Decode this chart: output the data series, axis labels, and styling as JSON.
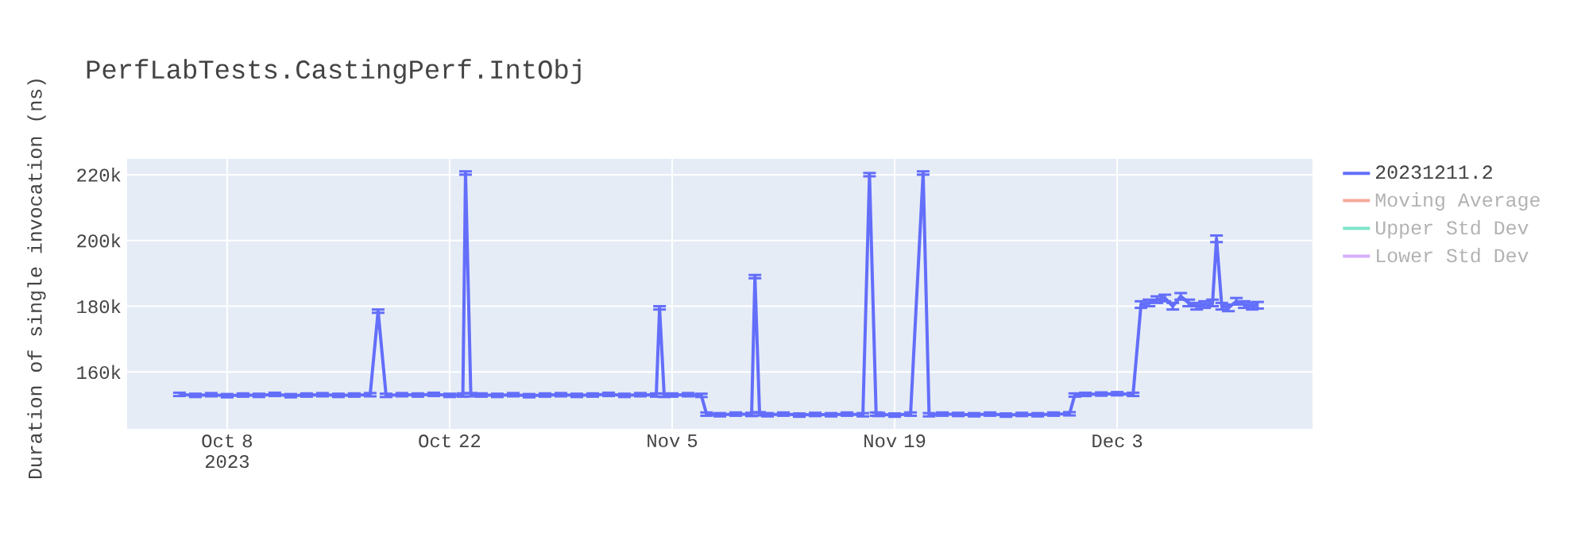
{
  "chart_data": {
    "type": "line",
    "title": "PerfLabTests.CastingPerf.IntObj",
    "ylabel": "Duration of single invocation (ns)",
    "x": [
      "2023-10-05",
      "2023-10-06",
      "2023-10-07",
      "2023-10-08",
      "2023-10-09",
      "2023-10-10",
      "2023-10-11",
      "2023-10-12",
      "2023-10-13",
      "2023-10-14",
      "2023-10-15",
      "2023-10-16",
      "2023-10-17",
      "2023-10-17T12:00",
      "2023-10-18",
      "2023-10-19",
      "2023-10-20",
      "2023-10-21",
      "2023-10-22",
      "2023-10-22T20:00",
      "2023-10-23",
      "2023-10-23T08:00",
      "2023-10-24",
      "2023-10-25",
      "2023-10-26",
      "2023-10-27",
      "2023-10-28",
      "2023-10-29",
      "2023-10-30",
      "2023-10-31",
      "2023-11-01",
      "2023-11-02",
      "2023-11-03",
      "2023-11-04",
      "2023-11-04T05:00",
      "2023-11-04T12:00",
      "2023-11-05",
      "2023-11-06",
      "2023-11-06T20:00",
      "2023-11-07T04:00",
      "2023-11-08",
      "2023-11-09",
      "2023-11-10",
      "2023-11-10T05:00",
      "2023-11-10T12:00",
      "2023-11-11",
      "2023-11-12",
      "2023-11-13",
      "2023-11-14",
      "2023-11-15",
      "2023-11-16",
      "2023-11-17",
      "2023-11-17T10:00",
      "2023-11-17T20:00",
      "2023-11-18",
      "2023-11-19",
      "2023-11-20",
      "2023-11-20T19:00",
      "2023-11-21T04:00",
      "2023-11-22",
      "2023-11-23",
      "2023-11-24",
      "2023-11-25",
      "2023-11-26",
      "2023-11-27",
      "2023-11-28",
      "2023-11-29",
      "2023-11-30",
      "2023-11-30T08:00",
      "2023-12-01",
      "2023-12-02",
      "2023-12-03",
      "2023-12-04",
      "2023-12-04T12:00",
      "2023-12-05",
      "2023-12-05T12:00",
      "2023-12-06",
      "2023-12-06T12:00",
      "2023-12-07",
      "2023-12-07T12:00",
      "2023-12-08",
      "2023-12-08T12:00",
      "2023-12-09",
      "2023-12-09T06:00",
      "2023-12-09T14:00",
      "2023-12-10",
      "2023-12-10T12:00",
      "2023-12-11",
      "2023-12-11T12:00",
      "2023-12-11T20:00"
    ],
    "series": [
      {
        "name": "20231211.2",
        "color": "#636efa",
        "values": [
          153200,
          152900,
          153100,
          152800,
          153000,
          152900,
          153200,
          152800,
          153000,
          153100,
          152900,
          153000,
          153100,
          178500,
          152900,
          153100,
          153000,
          153200,
          152900,
          153000,
          220500,
          153100,
          153000,
          152900,
          153100,
          152800,
          153000,
          153100,
          152900,
          153000,
          153200,
          152900,
          153100,
          153000,
          179500,
          152900,
          153000,
          153100,
          152900,
          147200,
          147000,
          147200,
          147100,
          189000,
          147300,
          147000,
          147200,
          146900,
          147100,
          147000,
          147200,
          147000,
          220000,
          147200,
          147100,
          146900,
          147200,
          220500,
          147000,
          147200,
          147100,
          147000,
          147200,
          146900,
          147100,
          147000,
          147200,
          147300,
          153000,
          153200,
          153300,
          153400,
          153200,
          180500,
          181000,
          182000,
          182500,
          180000,
          183000,
          181000,
          180000,
          180500,
          181000,
          200500,
          180000,
          179500,
          181500,
          180500,
          180000,
          180300
        ],
        "errors": [
          500,
          500,
          500,
          500,
          500,
          500,
          500,
          500,
          500,
          500,
          500,
          500,
          500,
          500,
          500,
          500,
          500,
          500,
          500,
          500,
          500,
          500,
          500,
          500,
          500,
          500,
          500,
          500,
          500,
          500,
          500,
          500,
          500,
          500,
          500,
          500,
          500,
          500,
          500,
          500,
          500,
          500,
          500,
          500,
          500,
          500,
          500,
          500,
          500,
          500,
          500,
          500,
          500,
          500,
          500,
          500,
          500,
          500,
          500,
          500,
          500,
          500,
          500,
          500,
          500,
          500,
          500,
          500,
          500,
          500,
          500,
          500,
          500,
          1000,
          1000,
          1000,
          1000,
          1000,
          1000,
          1000,
          1000,
          1000,
          1000,
          1000,
          1000,
          1000,
          1000,
          1000,
          1000,
          1000
        ]
      },
      {
        "name": "Moving Average",
        "color": "#f4aa9c",
        "values": [
          null,
          null,
          null,
          null,
          null,
          null,
          null,
          null,
          null,
          null,
          null,
          null,
          null,
          null,
          null,
          null,
          null,
          null,
          null,
          null,
          null,
          null,
          null,
          null,
          null,
          null,
          null,
          null,
          null,
          null,
          null,
          null,
          null,
          null,
          null,
          null,
          null,
          null,
          null,
          null,
          null,
          null,
          null,
          null,
          null,
          null,
          null,
          null,
          null,
          null,
          null,
          null,
          null,
          null,
          null,
          null,
          null,
          null,
          null,
          null,
          null,
          null,
          null,
          null,
          null,
          null,
          null,
          null,
          null,
          null,
          null,
          null,
          null,
          null,
          null,
          null,
          null,
          null,
          null,
          null,
          null,
          null,
          null,
          null,
          null,
          null,
          null,
          null,
          null,
          null
        ]
      },
      {
        "name": "Upper Std Dev",
        "color": "#7fe5ca",
        "values": [
          null,
          null,
          null,
          null,
          null,
          null,
          null,
          null,
          null,
          null,
          null,
          null,
          null,
          null,
          null,
          null,
          null,
          null,
          null,
          null,
          null,
          null,
          null,
          null,
          null,
          null,
          null,
          null,
          null,
          null,
          null,
          null,
          null,
          null,
          null,
          null,
          null,
          null,
          null,
          null,
          null,
          null,
          null,
          null,
          null,
          null,
          null,
          null,
          null,
          null,
          null,
          null,
          null,
          null,
          null,
          null,
          null,
          null,
          null,
          null,
          null,
          null,
          null,
          null,
          null,
          null,
          null,
          null,
          null,
          null,
          null,
          null,
          null,
          null,
          null,
          null,
          null,
          null,
          null,
          null,
          null,
          null,
          null,
          null,
          null,
          null,
          null,
          null,
          null,
          null
        ]
      },
      {
        "name": "Lower Std Dev",
        "color": "#d4b0fc",
        "values": [
          null,
          null,
          null,
          null,
          null,
          null,
          null,
          null,
          null,
          null,
          null,
          null,
          null,
          null,
          null,
          null,
          null,
          null,
          null,
          null,
          null,
          null,
          null,
          null,
          null,
          null,
          null,
          null,
          null,
          null,
          null,
          null,
          null,
          null,
          null,
          null,
          null,
          null,
          null,
          null,
          null,
          null,
          null,
          null,
          null,
          null,
          null,
          null,
          null,
          null,
          null,
          null,
          null,
          null,
          null,
          null,
          null,
          null,
          null,
          null,
          null,
          null,
          null,
          null,
          null,
          null,
          null,
          null,
          null,
          null,
          null,
          null,
          null,
          null,
          null,
          null,
          null,
          null,
          null,
          null,
          null,
          null,
          null,
          null,
          null,
          null,
          null,
          null,
          null,
          null
        ]
      }
    ],
    "xlim": [
      "2023-10-01T17:00",
      "2023-12-15T07:00"
    ],
    "xticks": [
      {
        "value": "2023-10-08",
        "label": "Oct 8 2023"
      },
      {
        "value": "2023-10-22",
        "label": "Oct 22"
      },
      {
        "value": "2023-11-05",
        "label": "Nov 5"
      },
      {
        "value": "2023-11-19",
        "label": "Nov 19"
      },
      {
        "value": "2023-12-03",
        "label": "Dec 3"
      }
    ],
    "ylim": [
      142700,
      224800
    ],
    "yticks": [
      {
        "value": 160000,
        "label": "160k"
      },
      {
        "value": 180000,
        "label": "180k"
      },
      {
        "value": 200000,
        "label": "200k"
      },
      {
        "value": 220000,
        "label": "220k"
      }
    ],
    "grid": true,
    "legend": "top right",
    "marker": "none",
    "line_style": "solid"
  }
}
